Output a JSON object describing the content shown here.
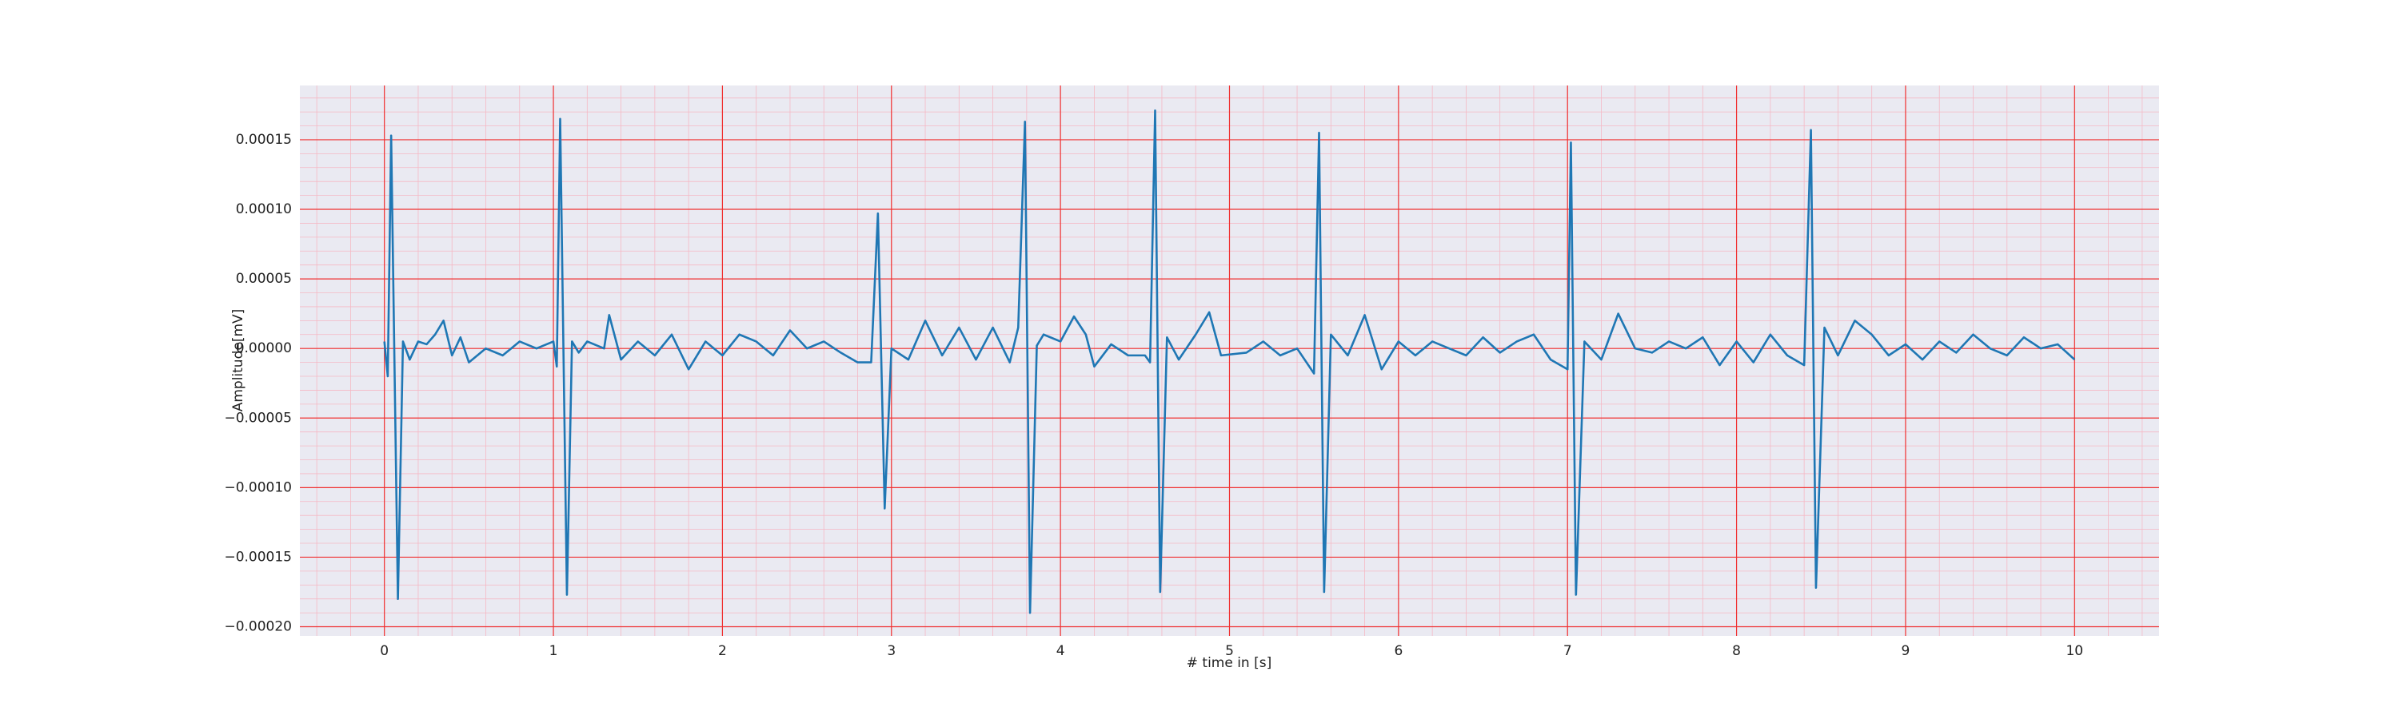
{
  "chart_data": {
    "type": "line",
    "xlabel": "# time in [s]",
    "ylabel": "Amplitude[mV]",
    "color": "#1f77b4",
    "background": "#eaeaf2",
    "grid": true,
    "grid_color": "#f03030",
    "minor_grid": true,
    "minor_grid_color": "#f5b8c4",
    "xlim": [
      -0.5,
      10.5
    ],
    "xticks": [
      0,
      1,
      2,
      3,
      4,
      5,
      6,
      7,
      8,
      9,
      10
    ],
    "ylim": [
      -0.0002066,
      0.000189
    ],
    "yticks": [
      {
        "value": -0.0002,
        "label": "−0.00020"
      },
      {
        "value": -0.00015,
        "label": "−0.00015"
      },
      {
        "value": -0.0001,
        "label": "−0.00010"
      },
      {
        "value": -5e-05,
        "label": "−0.00005"
      },
      {
        "value": 0,
        "label": "0.00000"
      },
      {
        "value": 5e-05,
        "label": "0.00005"
      },
      {
        "value": 0.0001,
        "label": "0.00010"
      },
      {
        "value": 0.00015,
        "label": "0.00015"
      }
    ],
    "x": [
      0,
      0.02,
      0.04,
      0.08,
      0.11,
      0.15,
      0.2,
      0.25,
      0.3,
      0.35,
      0.4,
      0.45,
      0.5,
      0.6,
      0.7,
      0.8,
      0.9,
      1.0,
      1.02,
      1.04,
      1.08,
      1.11,
      1.15,
      1.2,
      1.3,
      1.33,
      1.4,
      1.5,
      1.6,
      1.7,
      1.8,
      1.9,
      2.0,
      2.1,
      2.2,
      2.3,
      2.4,
      2.5,
      2.6,
      2.7,
      2.8,
      2.88,
      2.92,
      2.96,
      3.0,
      3.1,
      3.2,
      3.3,
      3.4,
      3.5,
      3.6,
      3.7,
      3.75,
      3.79,
      3.82,
      3.86,
      3.9,
      4.0,
      4.08,
      4.15,
      4.2,
      4.3,
      4.4,
      4.5,
      4.53,
      4.56,
      4.59,
      4.63,
      4.7,
      4.8,
      4.88,
      4.95,
      5.1,
      5.2,
      5.3,
      5.4,
      5.5,
      5.53,
      5.56,
      5.6,
      5.7,
      5.8,
      5.9,
      6.0,
      6.1,
      6.2,
      6.3,
      6.4,
      6.5,
      6.6,
      6.7,
      6.8,
      6.9,
      7.0,
      7.02,
      7.05,
      7.1,
      7.2,
      7.3,
      7.4,
      7.5,
      7.6,
      7.7,
      7.8,
      7.9,
      8.0,
      8.1,
      8.2,
      8.3,
      8.4,
      8.44,
      8.47,
      8.52,
      8.6,
      8.7,
      8.8,
      8.9,
      9.0,
      9.1,
      9.2,
      9.3,
      9.4,
      9.5,
      9.6,
      9.7,
      9.8,
      9.9,
      10.0
    ],
    "values": [
      5e-06,
      -2e-05,
      0.000153,
      -0.00018,
      5e-06,
      -8e-06,
      5e-06,
      3e-06,
      1e-05,
      2e-05,
      -5e-06,
      8e-06,
      -1e-05,
      0,
      -5e-06,
      5e-06,
      0,
      5e-06,
      -1.3e-05,
      0.000165,
      -0.000177,
      5e-06,
      -3e-06,
      5e-06,
      0,
      2.4e-05,
      -8e-06,
      5e-06,
      -5e-06,
      1e-05,
      -1.5e-05,
      5e-06,
      -5e-06,
      1e-05,
      5e-06,
      -5e-06,
      1.3e-05,
      0,
      5e-06,
      -3e-06,
      -1e-05,
      -1e-05,
      9.7e-05,
      -0.000115,
      0,
      -8e-06,
      2e-05,
      -5e-06,
      1.5e-05,
      -8e-06,
      1.5e-05,
      -1e-05,
      1.5e-05,
      0.000163,
      -0.00019,
      2e-06,
      1e-05,
      5e-06,
      2.3e-05,
      1e-05,
      -1.3e-05,
      3e-06,
      -5e-06,
      -5e-06,
      -1e-05,
      0.000171,
      -0.000175,
      8e-06,
      -8e-06,
      1e-05,
      2.6e-05,
      -5e-06,
      -3e-06,
      5e-06,
      -5e-06,
      0,
      -1.8e-05,
      0.000155,
      -0.000175,
      1e-05,
      -5e-06,
      2.4e-05,
      -1.5e-05,
      5e-06,
      -5e-06,
      5e-06,
      0,
      -5e-06,
      8e-06,
      -3e-06,
      5e-06,
      1e-05,
      -8e-06,
      -1.5e-05,
      0.000148,
      -0.000177,
      5e-06,
      -8e-06,
      2.5e-05,
      0,
      -3e-06,
      5e-06,
      0,
      8e-06,
      -1.2e-05,
      5e-06,
      -1e-05,
      1e-05,
      -5e-06,
      -1.2e-05,
      0.000157,
      -0.000172,
      1.5e-05,
      -5e-06,
      2e-05,
      1e-05,
      -5e-06,
      3e-06,
      -8e-06,
      5e-06,
      -3e-06,
      1e-05,
      0,
      -5e-06,
      8e-06,
      0,
      3e-06,
      -8e-06
    ]
  }
}
